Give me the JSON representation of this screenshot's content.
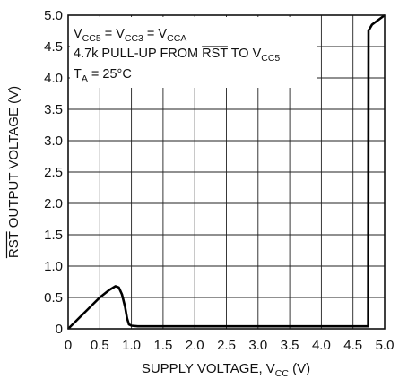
{
  "chart_data": {
    "type": "line",
    "xlabel": "SUPPLY VOLTAGE, V",
    "xlabel_sub": "CC",
    "xlabel_unit": " (V)",
    "ylabel_bar": "RST",
    "ylabel_rest": " OUTPUT VOLTAGE (V)",
    "xlim": [
      0,
      5.0
    ],
    "ylim": [
      0,
      5.0
    ],
    "x_ticks": [
      "0",
      "0.5",
      "1.0",
      "1.5",
      "2.0",
      "2.5",
      "3.0",
      "3.5",
      "4.0",
      "4.5",
      "5.0"
    ],
    "y_ticks": [
      "0",
      "0.5",
      "1.0",
      "1.5",
      "2.0",
      "2.5",
      "3.0",
      "3.5",
      "4.0",
      "4.5",
      "5.0"
    ],
    "grid": true,
    "annotations": {
      "line1": {
        "v1": "V",
        "s1": "CC5",
        "v2": " = V",
        "s2": "CC3",
        "v3": " = V",
        "s3": "CCA"
      },
      "line2": {
        "pre": "4.7k PULL-UP FROM ",
        "bar": "RST",
        "post": " TO V",
        "sub": "CC5"
      },
      "line3": {
        "pre": "T",
        "sub": "A",
        "post": " = 25°C"
      }
    },
    "series": [
      {
        "x": [
          0,
          0.1,
          0.2,
          0.3,
          0.4,
          0.5,
          0.6,
          0.65,
          0.7,
          0.75,
          0.8,
          0.85,
          0.9,
          0.93,
          0.96,
          1.0,
          1.1,
          2.0,
          3.0,
          4.0,
          4.74,
          4.745,
          4.76,
          4.8,
          5.0
        ],
        "y": [
          0,
          0.1,
          0.2,
          0.3,
          0.4,
          0.5,
          0.58,
          0.62,
          0.65,
          0.68,
          0.66,
          0.55,
          0.35,
          0.17,
          0.07,
          0.05,
          0.04,
          0.04,
          0.04,
          0.04,
          0.04,
          4.76,
          4.78,
          4.85,
          5.0
        ]
      }
    ]
  }
}
